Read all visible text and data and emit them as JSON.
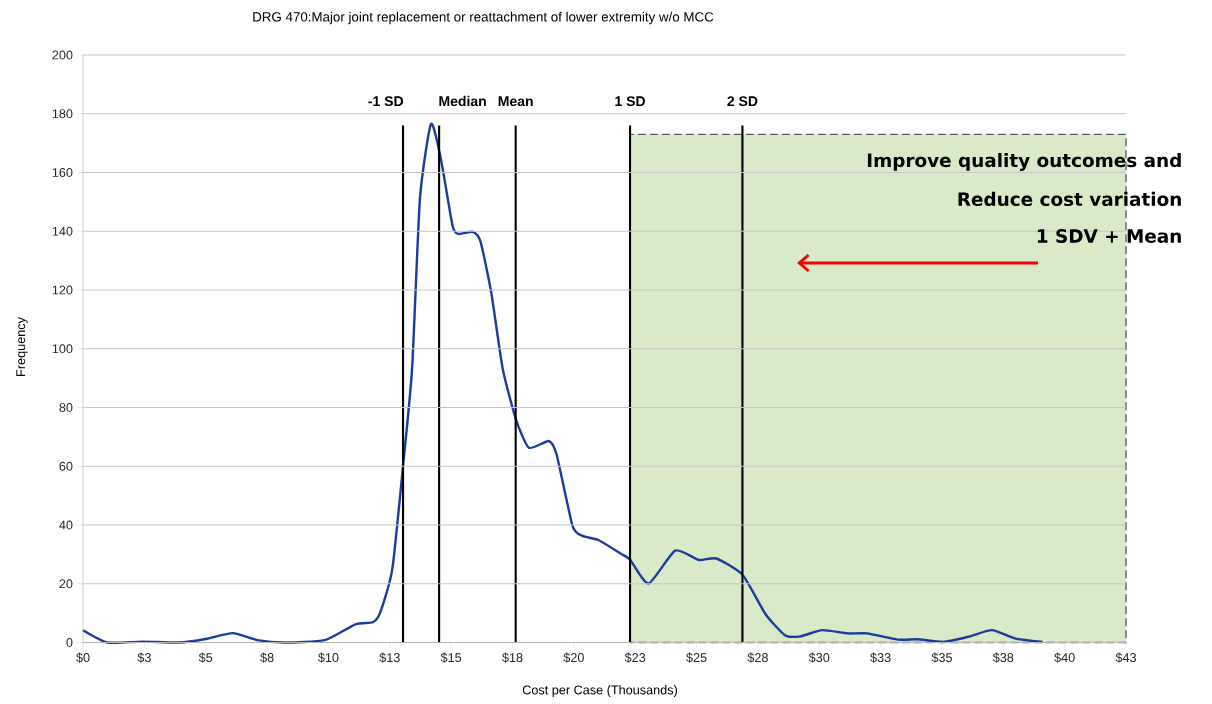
{
  "chart_data": {
    "type": "line",
    "title": "DRG 470:Major joint replacement or reattachment of lower extremity w/o MCC",
    "xlabel": "Cost per Case (Thousands)",
    "ylabel": "Frequency",
    "series": [
      {
        "color": "#1b3c9c",
        "x": [
          0,
          1.0,
          2.4,
          3.9,
          5.0,
          6.1,
          7.1,
          8.2,
          9.85,
          11.1,
          11.8,
          12.1,
          12.6,
          13.04,
          13.41,
          13.73,
          14.18,
          14.58,
          15.06,
          15.3,
          15.88,
          16.2,
          16.64,
          17.1,
          17.64,
          18.17,
          18.98,
          19.3,
          19.95,
          20.35,
          21.0,
          21.92,
          22.28,
          23.05,
          24.13,
          25.09,
          25.81,
          26.88,
          27.8,
          28.6,
          29.24,
          30.12,
          31.16,
          31.95,
          33.2,
          34.0,
          35.05,
          36.1,
          37.04,
          38.0,
          39.1
        ],
        "values": [
          4.2,
          0,
          0.3,
          0,
          1.2,
          3.2,
          0.8,
          0,
          0.8,
          6.2,
          6.9,
          10,
          24.8,
          60,
          93.3,
          151.2,
          176.5,
          164.7,
          141.8,
          139.1,
          139.8,
          136.4,
          118.9,
          93.3,
          76,
          66.3,
          68.6,
          63.9,
          39.6,
          36.3,
          34.9,
          30.2,
          28.3,
          20.1,
          31.3,
          28.1,
          28.6,
          23.0,
          9.8,
          2.5,
          2.1,
          4.2,
          3.1,
          3.1,
          1.0,
          1.1,
          0.2,
          2.0,
          4.2,
          1.3,
          0.2
        ]
      }
    ],
    "xlim": [
      0,
      42.5
    ],
    "xticks": [
      {
        "value": 0,
        "label": "$0"
      },
      {
        "value": 2.5,
        "label": "$3"
      },
      {
        "value": 5,
        "label": "$5"
      },
      {
        "value": 7.5,
        "label": "$8"
      },
      {
        "value": 10,
        "label": "$10"
      },
      {
        "value": 12.5,
        "label": "$13"
      },
      {
        "value": 15,
        "label": "$15"
      },
      {
        "value": 17.5,
        "label": "$18"
      },
      {
        "value": 20,
        "label": "$20"
      },
      {
        "value": 22.5,
        "label": "$23"
      },
      {
        "value": 25,
        "label": "$25"
      },
      {
        "value": 27.5,
        "label": "$28"
      },
      {
        "value": 30,
        "label": "$30"
      },
      {
        "value": 32.5,
        "label": "$33"
      },
      {
        "value": 35,
        "label": "$35"
      },
      {
        "value": 37.5,
        "label": "$38"
      },
      {
        "value": 40,
        "label": "$40"
      },
      {
        "value": 42.5,
        "label": "$43"
      }
    ],
    "ylim": [
      0,
      200
    ],
    "yticks": [
      0,
      20,
      40,
      60,
      80,
      100,
      120,
      140,
      160,
      180,
      200
    ],
    "grid": "y",
    "ref_lines": [
      {
        "axis": "x",
        "value": 13.04,
        "label": "-1 SD"
      },
      {
        "axis": "x",
        "value": 14.51,
        "label": "Median"
      },
      {
        "axis": "x",
        "value": 17.63,
        "label": "Mean"
      },
      {
        "axis": "x",
        "value": 22.29,
        "label": "1 SD"
      },
      {
        "axis": "x",
        "value": 26.87,
        "label": "2 SD"
      }
    ],
    "bands": [
      {
        "axis": "x",
        "from": 22.29,
        "to": 42.5,
        "color": "#d9eac8"
      }
    ],
    "annotations": [
      "Improve quality outcomes and",
      "Reduce cost variation",
      "1 SDV + Mean"
    ]
  }
}
